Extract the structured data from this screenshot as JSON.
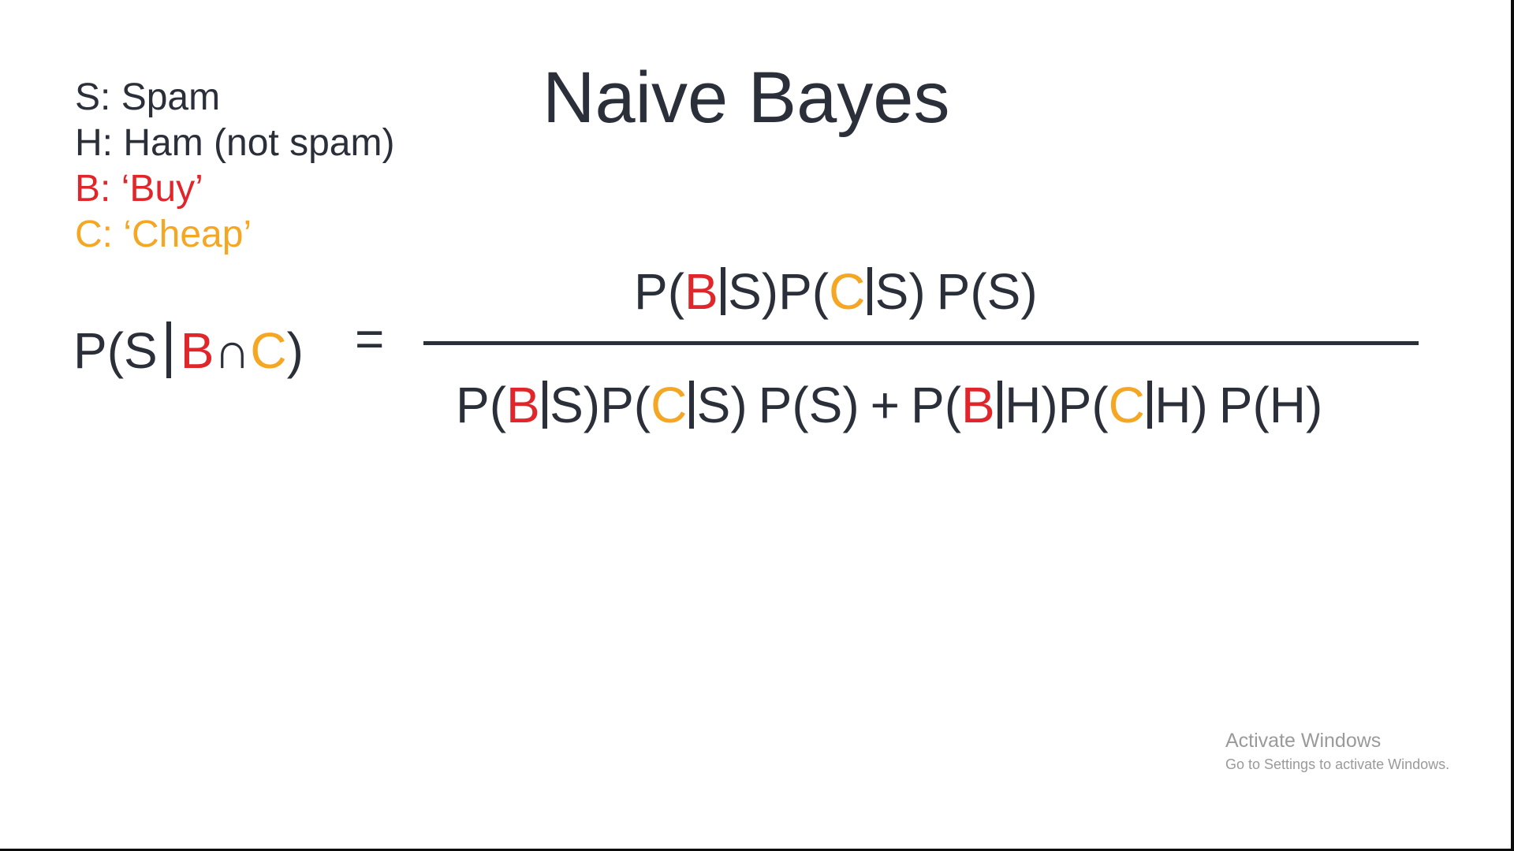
{
  "slide": {
    "title": "Naive Bayes",
    "legend": [
      {
        "symbol": "S",
        "text": "S: Spam",
        "color": "#2a2f3a"
      },
      {
        "symbol": "H",
        "text": "H: Ham (not spam)",
        "color": "#2a2f3a"
      },
      {
        "symbol": "B",
        "text": "B: ‘Buy’",
        "color": "#e0262a"
      },
      {
        "symbol": "C",
        "text": "C: ‘Cheap’",
        "color": "#f5a623"
      }
    ],
    "colors": {
      "text": "#2a2f3a",
      "buy": "#e0262a",
      "cheap": "#f5a623"
    },
    "formula": {
      "lhs": {
        "p_open": "P(",
        "s": "S",
        "b": "B",
        "cap": "∩",
        "c": "C",
        "close": ")"
      },
      "equals": "=",
      "numerator": {
        "t1_open": "P(",
        "t1_b": "B",
        "t1_s": "S)",
        "t2_open": "P(",
        "t2_c": "C",
        "t2_s": "S)",
        "t3": "P(S)"
      },
      "denominator": {
        "t1_open": "P(",
        "t1_b": "B",
        "t1_s": "S)",
        "t2_open": "P(",
        "t2_c": "C",
        "t2_s": "S)",
        "t3": "P(S)",
        "plus": "+",
        "t4_open": "P(",
        "t4_b": "B",
        "t4_h": "H)",
        "t5_open": "P(",
        "t5_c": "C",
        "t5_h": "H)",
        "t6": "P(H)"
      }
    }
  },
  "watermark": {
    "title": "Activate Windows",
    "subtitle": "Go to Settings to activate Windows."
  }
}
